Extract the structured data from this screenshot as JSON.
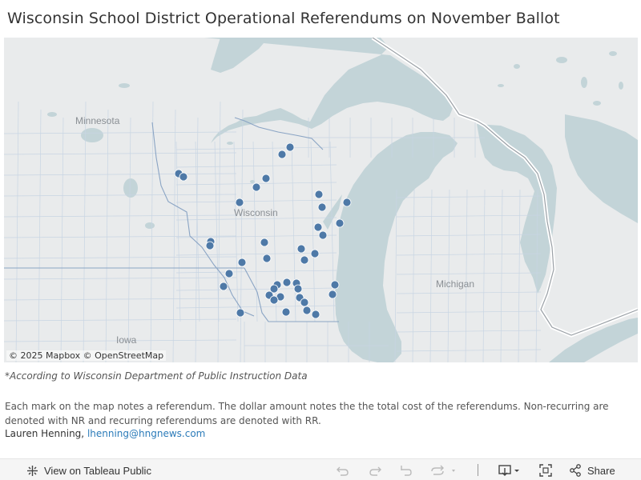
{
  "title": "Wisconsin School District Operational Referendums on November Ballot",
  "map": {
    "state_labels": [
      {
        "name": "Minnesota"
      },
      {
        "name": "Wisconsin"
      },
      {
        "name": "Michigan"
      },
      {
        "name": "Iowa"
      }
    ],
    "attribution": "© 2025 Mapbox  © OpenStreetMap",
    "marker_color": "#4e79a7",
    "water_color": "#c3d4d8",
    "referendum_count": 42
  },
  "source_note": "*According to Wisconsin Department of Public Instruction Data",
  "description": "Each mark on the map notes a referendum. The dollar amount notes the the total cost of the referendums. Non-recurring are denoted with NR and recurring referendums are denoted with RR.",
  "author": {
    "name": "Lauren Henning,",
    "email": "lhenning@hngnews.com"
  },
  "toolbar": {
    "view_label": "View on Tableau Public",
    "share_label": "Share"
  }
}
